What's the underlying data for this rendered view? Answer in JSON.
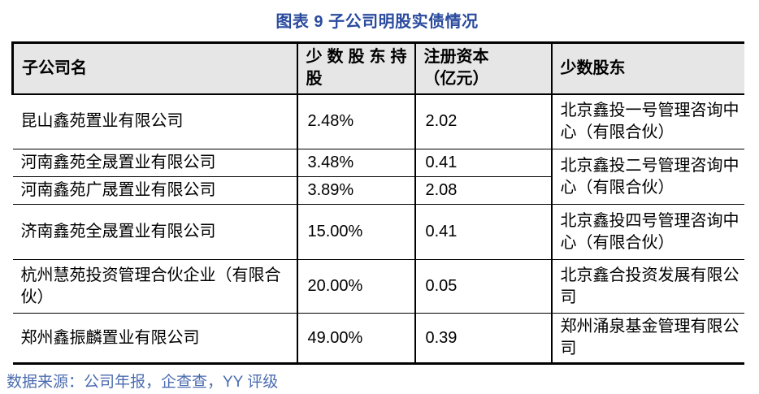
{
  "title": "图表 9 子公司明股实债情况",
  "table": {
    "headers": [
      "子公司名",
      "少数股东持\n股",
      "注册资本\n（亿元）",
      "少数股东"
    ],
    "rows": [
      {
        "name": "昆山鑫苑置业有限公司",
        "stake": "2.48%",
        "capital": "2.02",
        "shareholder": "北京鑫投一号管理咨询中心（有限合伙）"
      },
      {
        "name": "河南鑫苑全晟置业有限公司",
        "stake": "3.48%",
        "capital": "0.41",
        "shareholder": "北京鑫投二号管理咨询中心（有限合伙）"
      },
      {
        "name": "河南鑫苑广晟置业有限公司",
        "stake": "3.89%",
        "capital": "2.08"
      },
      {
        "name": "济南鑫苑全晟置业有限公司",
        "stake": "15.00%",
        "capital": "0.41",
        "shareholder": "北京鑫投四号管理咨询中心（有限合伙）"
      },
      {
        "name": "杭州慧苑投资管理合伙企业（有限合伙）",
        "stake": "20.00%",
        "capital": "0.05",
        "shareholder": "北京鑫合投资发展有限公司"
      },
      {
        "name": "郑州鑫振麟置业有限公司",
        "stake": "49.00%",
        "capital": "0.39",
        "shareholder": "郑州涌泉基金管理有限公司"
      }
    ]
  },
  "source": "数据来源：公司年报，企查查，YY 评级",
  "colors": {
    "title_text": "#2B4B9E",
    "source_text": "#4A6BB0",
    "header_bg": "#E6E6E6",
    "border": "#000000"
  }
}
